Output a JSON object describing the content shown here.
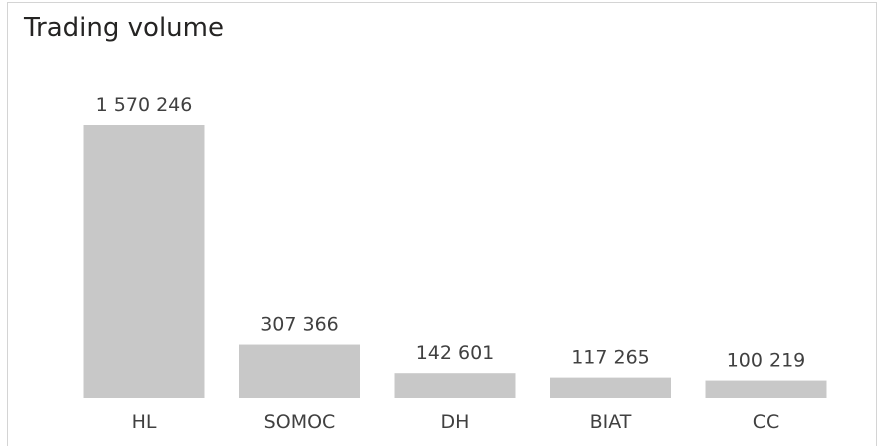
{
  "chart_data": {
    "type": "bar",
    "title": "Trading volume",
    "categories": [
      "HL",
      "SOMOC",
      "DH",
      "BIAT",
      "CC"
    ],
    "values": [
      1570246,
      307366,
      142601,
      117265,
      100219
    ],
    "value_labels": [
      "1 570 246",
      "307 366",
      "142 601",
      "117 265",
      "100 219"
    ],
    "bar_color": "#c8c8c8",
    "xlabel": "",
    "ylabel": "",
    "grid": false
  }
}
